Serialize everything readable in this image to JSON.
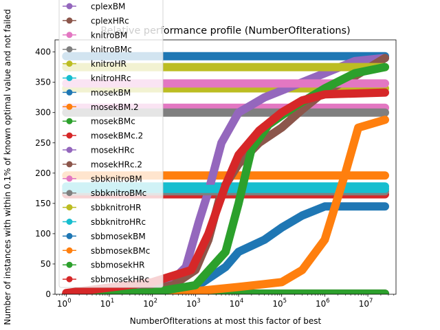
{
  "chart_data": {
    "type": "line",
    "title": "Relative performance profile (NumberOfIterations)",
    "xlabel": "NumberOfIterations at most this factor of best",
    "ylabel": "Number of instances with within 0.1% of known optimal value and not failed",
    "xscale": "log",
    "xlim": [
      0.55,
      45000000
    ],
    "ylim": [
      0,
      420
    ],
    "x_ticks": [
      {
        "value": 1,
        "base": "10",
        "exp": "0"
      },
      {
        "value": 10,
        "base": "10",
        "exp": "1"
      },
      {
        "value": 100,
        "base": "10",
        "exp": "2"
      },
      {
        "value": 1000,
        "base": "10",
        "exp": "3"
      },
      {
        "value": 10000,
        "base": "10",
        "exp": "4"
      },
      {
        "value": 100000,
        "base": "10",
        "exp": "5"
      },
      {
        "value": 1000000,
        "base": "10",
        "exp": "6"
      },
      {
        "value": 10000000,
        "base": "10",
        "exp": "7"
      }
    ],
    "y_ticks": [
      0,
      50,
      100,
      150,
      200,
      250,
      300,
      350,
      400
    ],
    "grid": false,
    "legend_position": "upper-left",
    "series": [
      {
        "name": "cplexBM",
        "color": "#9467bd",
        "points": [
          [
            1,
            1
          ],
          [
            25000000.0,
            1
          ]
        ]
      },
      {
        "name": "cplexHRc",
        "color": "#8c564b",
        "points": [
          [
            1,
            1
          ],
          [
            25000000.0,
            1
          ]
        ]
      },
      {
        "name": "knitroBM",
        "color": "#e377c2",
        "points": [
          [
            1,
            308
          ],
          [
            25000000.0,
            308
          ]
        ]
      },
      {
        "name": "knitroBMc",
        "color": "#7f7f7f",
        "points": [
          [
            1,
            300
          ],
          [
            25000000.0,
            300
          ]
        ]
      },
      {
        "name": "knitroHR",
        "color": "#bcbd22",
        "points": [
          [
            1,
            340
          ],
          [
            25000000.0,
            340
          ]
        ]
      },
      {
        "name": "knitroHRc",
        "color": "#17becf",
        "points": [
          [
            1,
            178
          ],
          [
            25000000.0,
            178
          ]
        ]
      },
      {
        "name": "mosekBM",
        "color": "#1f77b4",
        "points": [
          [
            1,
            393
          ],
          [
            25000000.0,
            393
          ]
        ]
      },
      {
        "name": "mosekBM.2",
        "color": "#ff7f0e",
        "points": [
          [
            1,
            196
          ],
          [
            25000000.0,
            196
          ]
        ]
      },
      {
        "name": "mosekBMc",
        "color": "#2ca02c",
        "points": [
          [
            1,
            1
          ],
          [
            25000000.0,
            1
          ]
        ]
      },
      {
        "name": "mosekBMc.2",
        "color": "#d62728",
        "points": [
          [
            1,
            165
          ],
          [
            25000000.0,
            165
          ]
        ]
      },
      {
        "name": "mosekHRc",
        "color": "#9467bd",
        "points": [
          [
            1,
            0
          ],
          [
            30,
            2
          ],
          [
            200,
            12
          ],
          [
            600,
            45
          ],
          [
            1200,
            120
          ],
          [
            2000,
            170
          ],
          [
            4000,
            250
          ],
          [
            10000,
            300
          ],
          [
            40000,
            325
          ],
          [
            200000,
            345
          ],
          [
            1000000,
            365
          ],
          [
            5000000,
            385
          ],
          [
            25000000.0,
            390
          ]
        ]
      },
      {
        "name": "mosekHRc.2",
        "color": "#8c564b",
        "points": [
          [
            1,
            0
          ],
          [
            50,
            3
          ],
          [
            300,
            15
          ],
          [
            1000,
            40
          ],
          [
            2000,
            90
          ],
          [
            4000,
            170
          ],
          [
            10000,
            215
          ],
          [
            30000,
            250
          ],
          [
            100000,
            275
          ],
          [
            300000,
            305
          ],
          [
            1000000,
            335
          ],
          [
            5000000,
            360
          ],
          [
            25000000.0,
            390
          ]
        ]
      },
      {
        "name": "sbbknitroBM",
        "color": "#e377c2",
        "points": [
          [
            1,
            348
          ],
          [
            25000000.0,
            348
          ]
        ]
      },
      {
        "name": "sbbknitroBMc",
        "color": "#7f7f7f",
        "points": [
          [
            1,
            170
          ],
          [
            25000000.0,
            170
          ]
        ]
      },
      {
        "name": "sbbknitroHR",
        "color": "#bcbd22",
        "points": [
          [
            1,
            375
          ],
          [
            25000000.0,
            375
          ]
        ]
      },
      {
        "name": "sbbknitroHRc",
        "color": "#17becf",
        "points": [
          [
            1,
            174
          ],
          [
            25000000.0,
            174
          ]
        ]
      },
      {
        "name": "sbbmosekBM",
        "color": "#1f77b4",
        "points": [
          [
            1,
            0
          ],
          [
            80,
            1
          ],
          [
            500,
            5
          ],
          [
            1500,
            20
          ],
          [
            5000,
            45
          ],
          [
            10000,
            70
          ],
          [
            40000,
            90
          ],
          [
            100000,
            110
          ],
          [
            300000,
            130
          ],
          [
            1000000,
            145
          ],
          [
            25000000.0,
            145
          ]
        ]
      },
      {
        "name": "sbbmosekBMc",
        "color": "#ff7f0e",
        "points": [
          [
            1,
            0
          ],
          [
            100,
            2
          ],
          [
            1000,
            5
          ],
          [
            10000,
            12
          ],
          [
            100000,
            20
          ],
          [
            300000,
            40
          ],
          [
            1000000,
            90
          ],
          [
            3000000,
            200
          ],
          [
            6000000,
            275
          ],
          [
            25000000.0,
            288
          ]
        ]
      },
      {
        "name": "sbbmosekHR",
        "color": "#2ca02c",
        "points": [
          [
            1,
            0
          ],
          [
            100,
            3
          ],
          [
            1000,
            15
          ],
          [
            5000,
            70
          ],
          [
            10000,
            150
          ],
          [
            20000,
            240
          ],
          [
            50000,
            280
          ],
          [
            200000,
            310
          ],
          [
            1000000,
            340
          ],
          [
            5000000,
            365
          ],
          [
            25000000.0,
            375
          ]
        ]
      },
      {
        "name": "sbbmosekHRc",
        "color": "#d62728",
        "points": [
          [
            1,
            2
          ],
          [
            100,
            20
          ],
          [
            800,
            40
          ],
          [
            2000,
            100
          ],
          [
            5000,
            180
          ],
          [
            10000,
            230
          ],
          [
            30000,
            270
          ],
          [
            100000,
            300
          ],
          [
            300000,
            320
          ],
          [
            1000000,
            330
          ],
          [
            25000000.0,
            333
          ]
        ]
      }
    ]
  }
}
